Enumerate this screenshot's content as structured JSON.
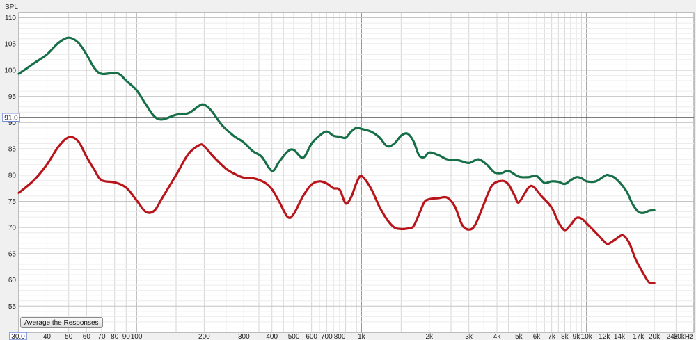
{
  "chart_data": {
    "type": "line",
    "ylabel": "SPL",
    "x_scale": "log",
    "xlim": [
      30,
      30000
    ],
    "ylim": [
      50,
      111
    ],
    "grid": true,
    "y_ticks": [
      55,
      60,
      65,
      70,
      75,
      80,
      85,
      90,
      95,
      100,
      105,
      110
    ],
    "x_ticks": [
      {
        "v": 40,
        "label": "40"
      },
      {
        "v": 50,
        "label": "50"
      },
      {
        "v": 60,
        "label": "60"
      },
      {
        "v": 70,
        "label": "70"
      },
      {
        "v": 80,
        "label": "80"
      },
      {
        "v": 90,
        "label": "90"
      },
      {
        "v": 100,
        "label": "100"
      },
      {
        "v": 200,
        "label": "200"
      },
      {
        "v": 300,
        "label": "300"
      },
      {
        "v": 400,
        "label": "400"
      },
      {
        "v": 500,
        "label": "500"
      },
      {
        "v": 600,
        "label": "600"
      },
      {
        "v": 700,
        "label": "700"
      },
      {
        "v": 800,
        "label": "800"
      },
      {
        "v": 1000,
        "label": "1k"
      },
      {
        "v": 2000,
        "label": "2k"
      },
      {
        "v": 3000,
        "label": "3k"
      },
      {
        "v": 4000,
        "label": "4k"
      },
      {
        "v": 5000,
        "label": "5k"
      },
      {
        "v": 6000,
        "label": "6k"
      },
      {
        "v": 7000,
        "label": "7k"
      },
      {
        "v": 8000,
        "label": "8k"
      },
      {
        "v": 9000,
        "label": "9k"
      },
      {
        "v": 10000,
        "label": "10k"
      },
      {
        "v": 12000,
        "label": "12k"
      },
      {
        "v": 14000,
        "label": "14k"
      },
      {
        "v": 17000,
        "label": "17k"
      },
      {
        "v": 20000,
        "label": "20k"
      },
      {
        "v": 24000,
        "label": "24k"
      },
      {
        "v": 30000,
        "label": "30kHz"
      }
    ],
    "x_start_label": "30.0",
    "cursor": {
      "y": 91.0,
      "label": "91.0"
    },
    "series": [
      {
        "color": "#176f48",
        "points": [
          [
            30,
            99.3
          ],
          [
            35,
            101.3
          ],
          [
            40,
            103.0
          ],
          [
            45,
            105.2
          ],
          [
            50,
            106.2
          ],
          [
            55,
            105.3
          ],
          [
            60,
            103.0
          ],
          [
            65,
            100.4
          ],
          [
            70,
            99.3
          ],
          [
            80,
            99.5
          ],
          [
            85,
            99.1
          ],
          [
            90,
            98.0
          ],
          [
            100,
            96.2
          ],
          [
            110,
            93.5
          ],
          [
            120,
            91.2
          ],
          [
            130,
            90.6
          ],
          [
            150,
            91.5
          ],
          [
            170,
            91.8
          ],
          [
            190,
            93.2
          ],
          [
            200,
            93.4
          ],
          [
            215,
            92.3
          ],
          [
            240,
            89.5
          ],
          [
            270,
            87.5
          ],
          [
            300,
            86.2
          ],
          [
            330,
            84.5
          ],
          [
            360,
            83.5
          ],
          [
            400,
            80.8
          ],
          [
            430,
            82.5
          ],
          [
            470,
            84.5
          ],
          [
            500,
            84.8
          ],
          [
            550,
            83.3
          ],
          [
            600,
            86.0
          ],
          [
            650,
            87.5
          ],
          [
            700,
            88.3
          ],
          [
            750,
            87.5
          ],
          [
            800,
            87.3
          ],
          [
            850,
            87.1
          ],
          [
            900,
            88.3
          ],
          [
            950,
            89.0
          ],
          [
            1000,
            88.8
          ],
          [
            1100,
            88.3
          ],
          [
            1200,
            87.2
          ],
          [
            1300,
            85.5
          ],
          [
            1400,
            86.0
          ],
          [
            1500,
            87.5
          ],
          [
            1600,
            87.9
          ],
          [
            1700,
            86.5
          ],
          [
            1800,
            83.8
          ],
          [
            1900,
            83.4
          ],
          [
            2000,
            84.3
          ],
          [
            2200,
            83.8
          ],
          [
            2400,
            83.0
          ],
          [
            2700,
            82.8
          ],
          [
            3000,
            82.3
          ],
          [
            3300,
            83.0
          ],
          [
            3600,
            82.0
          ],
          [
            3900,
            80.5
          ],
          [
            4200,
            80.4
          ],
          [
            4500,
            80.8
          ],
          [
            5000,
            79.7
          ],
          [
            5500,
            79.6
          ],
          [
            6000,
            79.8
          ],
          [
            6500,
            78.5
          ],
          [
            7000,
            78.8
          ],
          [
            7500,
            78.7
          ],
          [
            8000,
            78.3
          ],
          [
            8500,
            79.0
          ],
          [
            9000,
            79.6
          ],
          [
            9500,
            79.4
          ],
          [
            10000,
            78.8
          ],
          [
            11000,
            78.8
          ],
          [
            12000,
            79.8
          ],
          [
            12500,
            80.0
          ],
          [
            13500,
            79.3
          ],
          [
            15000,
            77.0
          ],
          [
            16000,
            74.5
          ],
          [
            17000,
            73.0
          ],
          [
            18000,
            72.8
          ],
          [
            19000,
            73.2
          ],
          [
            20000,
            73.3
          ]
        ]
      },
      {
        "color": "#b8151b",
        "points": [
          [
            30,
            76.6
          ],
          [
            35,
            79.0
          ],
          [
            40,
            82.0
          ],
          [
            45,
            85.4
          ],
          [
            50,
            87.2
          ],
          [
            55,
            86.5
          ],
          [
            60,
            83.5
          ],
          [
            65,
            81.0
          ],
          [
            70,
            79.0
          ],
          [
            80,
            78.6
          ],
          [
            90,
            77.6
          ],
          [
            100,
            75.2
          ],
          [
            110,
            73.0
          ],
          [
            120,
            73.2
          ],
          [
            130,
            75.6
          ],
          [
            150,
            80.0
          ],
          [
            170,
            84.0
          ],
          [
            190,
            85.7
          ],
          [
            200,
            85.5
          ],
          [
            220,
            83.5
          ],
          [
            250,
            81.2
          ],
          [
            280,
            80.0
          ],
          [
            300,
            79.5
          ],
          [
            330,
            79.4
          ],
          [
            370,
            78.6
          ],
          [
            400,
            77.3
          ],
          [
            430,
            75.0
          ],
          [
            470,
            72.0
          ],
          [
            500,
            72.6
          ],
          [
            550,
            76.0
          ],
          [
            600,
            78.2
          ],
          [
            650,
            78.8
          ],
          [
            700,
            78.4
          ],
          [
            750,
            77.5
          ],
          [
            800,
            77.2
          ],
          [
            850,
            74.6
          ],
          [
            900,
            75.8
          ],
          [
            950,
            78.5
          ],
          [
            1000,
            79.8
          ],
          [
            1100,
            77.5
          ],
          [
            1200,
            74.0
          ],
          [
            1300,
            71.5
          ],
          [
            1400,
            70.0
          ],
          [
            1500,
            69.7
          ],
          [
            1600,
            69.8
          ],
          [
            1700,
            70.2
          ],
          [
            1800,
            72.5
          ],
          [
            1900,
            74.8
          ],
          [
            2000,
            75.4
          ],
          [
            2200,
            75.6
          ],
          [
            2400,
            75.7
          ],
          [
            2600,
            74.0
          ],
          [
            2800,
            70.5
          ],
          [
            3000,
            69.6
          ],
          [
            3200,
            70.5
          ],
          [
            3500,
            74.5
          ],
          [
            3800,
            78.0
          ],
          [
            4200,
            78.9
          ],
          [
            4500,
            78.2
          ],
          [
            4800,
            76.0
          ],
          [
            5000,
            74.8
          ],
          [
            5500,
            77.5
          ],
          [
            5800,
            77.8
          ],
          [
            6300,
            76.0
          ],
          [
            7000,
            73.8
          ],
          [
            7500,
            71.0
          ],
          [
            8000,
            69.5
          ],
          [
            8500,
            70.5
          ],
          [
            9000,
            71.8
          ],
          [
            9500,
            71.7
          ],
          [
            10000,
            70.8
          ],
          [
            11000,
            69.0
          ],
          [
            12000,
            67.3
          ],
          [
            12500,
            66.9
          ],
          [
            13500,
            67.8
          ],
          [
            14500,
            68.5
          ],
          [
            15500,
            67.0
          ],
          [
            16500,
            64.0
          ],
          [
            18000,
            61.0
          ],
          [
            19000,
            59.5
          ],
          [
            20000,
            59.4
          ]
        ]
      }
    ]
  },
  "controls": {
    "average_button": "Average the Responses"
  }
}
